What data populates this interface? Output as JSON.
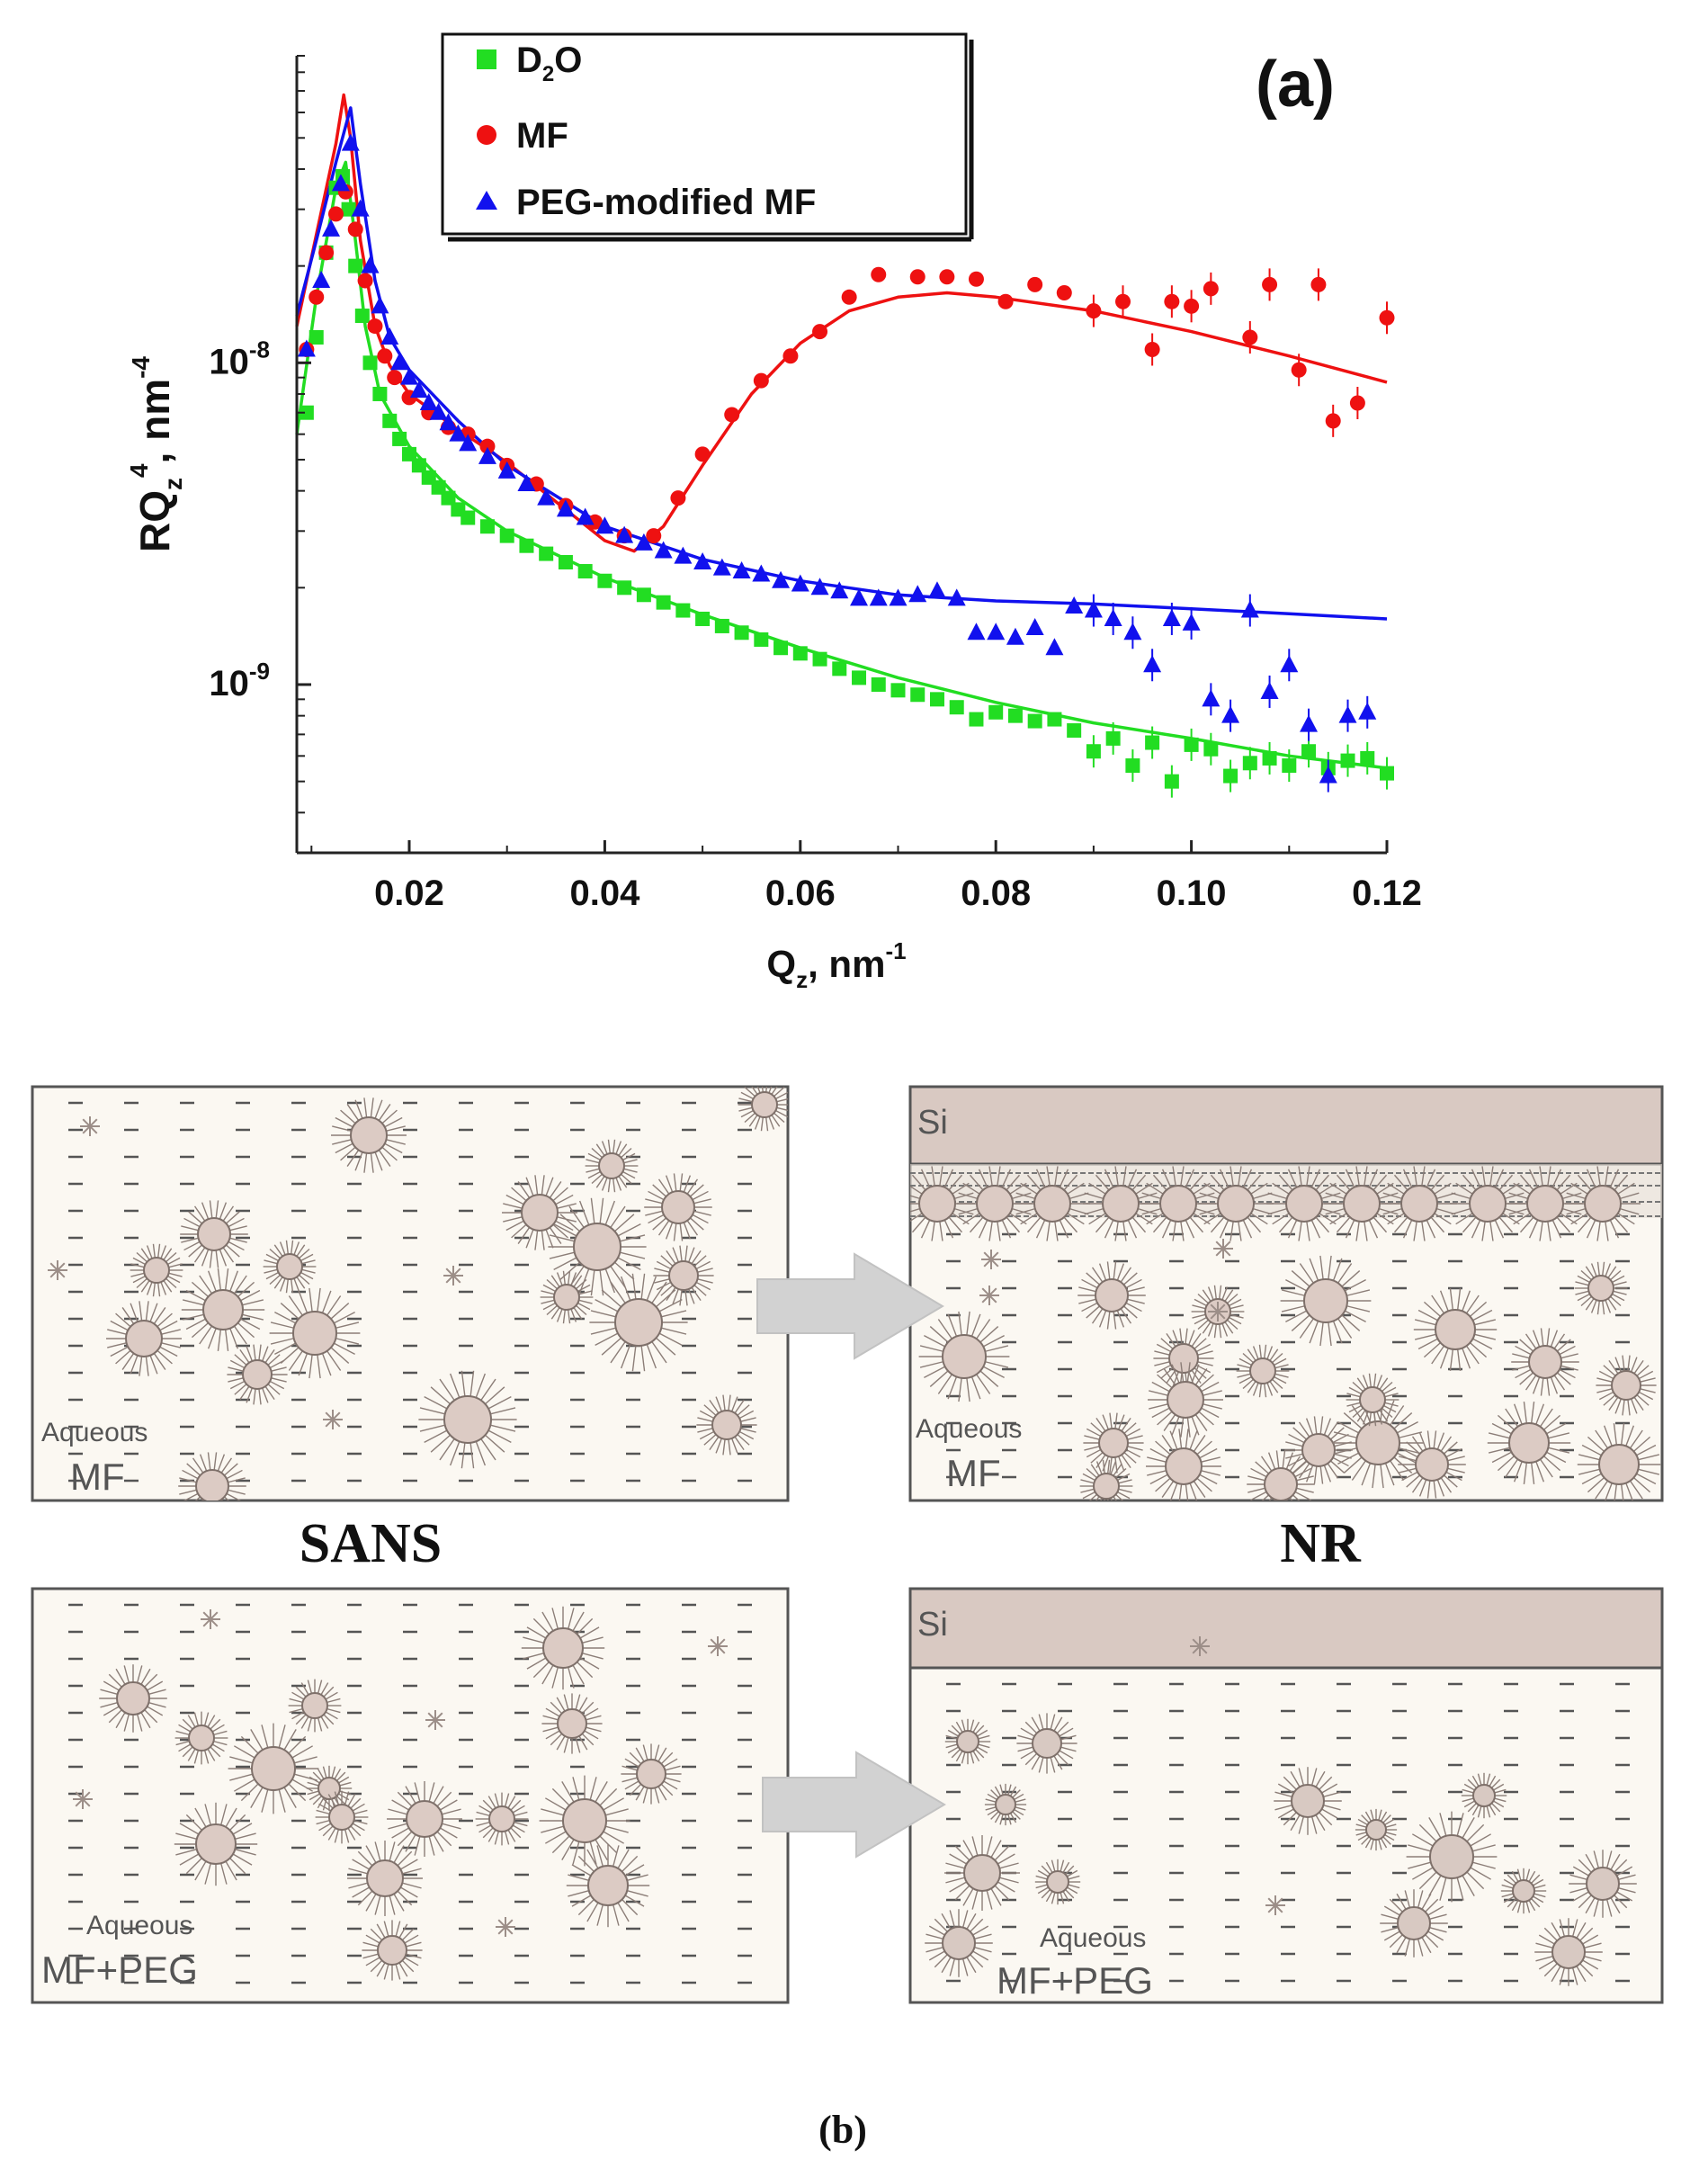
{
  "panel_a_label": "(a)",
  "panel_b_label": "(b)",
  "chart_data": {
    "type": "scatter",
    "title": "",
    "xlabel": "Q",
    "xlabel_sub": "z",
    "xlabel_unit": ", nm",
    "xlabel_sup": "-1",
    "ylabel": "RQ",
    "ylabel_sub": "z",
    "ylabel_sup": "4",
    "ylabel_unit": ", nm",
    "ylabel_unit_sup": "-4",
    "xlim": [
      0.0085,
      0.12
    ],
    "ylim": [
      3e-10,
      9e-08
    ],
    "yscale": "log",
    "x_ticks": [
      0.02,
      0.04,
      0.06,
      0.08,
      0.1,
      0.12
    ],
    "x_tick_labels": [
      "0.02",
      "0.04",
      "0.06",
      "0.08",
      "0.10",
      "0.12"
    ],
    "y_ticks": [
      1e-09,
      1e-08
    ],
    "y_tick_labels": [
      {
        "base": "10",
        "exp": "-9"
      },
      {
        "base": "10",
        "exp": "-8"
      }
    ],
    "legend": {
      "position": "top",
      "entries": [
        {
          "label": "D",
          "sub": "2",
          "rest": "O",
          "marker": "square",
          "color": "#22dd22"
        },
        {
          "label": "MF",
          "sub": "",
          "rest": "",
          "marker": "circle",
          "color": "#ee1111"
        },
        {
          "label": "PEG-modified MF",
          "sub": "",
          "rest": "",
          "marker": "triangle",
          "color": "#1111ee"
        }
      ]
    },
    "series": [
      {
        "name": "D2O",
        "marker": "square",
        "color": "#22dd22",
        "points": [
          [
            0.0095,
            7e-09
          ],
          [
            0.0105,
            1.2e-08
          ],
          [
            0.0115,
            2.2e-08
          ],
          [
            0.0125,
            3.5e-08
          ],
          [
            0.0132,
            3.8e-08
          ],
          [
            0.0138,
            3e-08
          ],
          [
            0.0145,
            2e-08
          ],
          [
            0.0152,
            1.4e-08
          ],
          [
            0.016,
            1e-08
          ],
          [
            0.017,
            8e-09
          ],
          [
            0.018,
            6.6e-09
          ],
          [
            0.019,
            5.8e-09
          ],
          [
            0.02,
            5.2e-09
          ],
          [
            0.021,
            4.8e-09
          ],
          [
            0.022,
            4.4e-09
          ],
          [
            0.023,
            4.1e-09
          ],
          [
            0.024,
            3.8e-09
          ],
          [
            0.025,
            3.5e-09
          ],
          [
            0.026,
            3.3e-09
          ],
          [
            0.028,
            3.1e-09
          ],
          [
            0.03,
            2.9e-09
          ],
          [
            0.032,
            2.7e-09
          ],
          [
            0.034,
            2.55e-09
          ],
          [
            0.036,
            2.4e-09
          ],
          [
            0.038,
            2.25e-09
          ],
          [
            0.04,
            2.1e-09
          ],
          [
            0.042,
            2e-09
          ],
          [
            0.044,
            1.9e-09
          ],
          [
            0.046,
            1.8e-09
          ],
          [
            0.048,
            1.7e-09
          ],
          [
            0.05,
            1.6e-09
          ],
          [
            0.052,
            1.52e-09
          ],
          [
            0.054,
            1.45e-09
          ],
          [
            0.056,
            1.38e-09
          ],
          [
            0.058,
            1.3e-09
          ],
          [
            0.06,
            1.25e-09
          ],
          [
            0.062,
            1.2e-09
          ],
          [
            0.064,
            1.12e-09
          ],
          [
            0.066,
            1.05e-09
          ],
          [
            0.068,
            1e-09
          ],
          [
            0.07,
            9.6e-10
          ],
          [
            0.072,
            9.3e-10
          ],
          [
            0.074,
            9e-10
          ],
          [
            0.076,
            8.5e-10
          ],
          [
            0.078,
            7.8e-10
          ],
          [
            0.08,
            8.2e-10
          ],
          [
            0.082,
            8e-10
          ],
          [
            0.084,
            7.7e-10
          ],
          [
            0.086,
            7.8e-10
          ],
          [
            0.088,
            7.2e-10
          ],
          [
            0.09,
            6.2e-10
          ],
          [
            0.092,
            6.8e-10
          ],
          [
            0.094,
            5.6e-10
          ],
          [
            0.096,
            6.6e-10
          ],
          [
            0.098,
            5e-10
          ],
          [
            0.1,
            6.5e-10
          ],
          [
            0.102,
            6.3e-10
          ],
          [
            0.104,
            5.2e-10
          ],
          [
            0.106,
            5.7e-10
          ],
          [
            0.108,
            5.9e-10
          ],
          [
            0.11,
            5.6e-10
          ],
          [
            0.112,
            6.2e-10
          ],
          [
            0.114,
            5.5e-10
          ],
          [
            0.116,
            5.8e-10
          ],
          [
            0.118,
            5.9e-10
          ],
          [
            0.12,
            5.3e-10
          ]
        ]
      },
      {
        "name": "MF",
        "marker": "circle",
        "color": "#ee1111",
        "points": [
          [
            0.0095,
            1.1e-08
          ],
          [
            0.0105,
            1.6e-08
          ],
          [
            0.0115,
            2.2e-08
          ],
          [
            0.0125,
            2.9e-08
          ],
          [
            0.0135,
            3.4e-08
          ],
          [
            0.0145,
            2.6e-08
          ],
          [
            0.0155,
            1.8e-08
          ],
          [
            0.0165,
            1.3e-08
          ],
          [
            0.0175,
            1.05e-08
          ],
          [
            0.0185,
            9e-09
          ],
          [
            0.02,
            7.8e-09
          ],
          [
            0.022,
            7e-09
          ],
          [
            0.024,
            6.3e-09
          ],
          [
            0.026,
            6e-09
          ],
          [
            0.028,
            5.5e-09
          ],
          [
            0.03,
            4.8e-09
          ],
          [
            0.033,
            4.2e-09
          ],
          [
            0.036,
            3.6e-09
          ],
          [
            0.039,
            3.2e-09
          ],
          [
            0.042,
            2.9e-09
          ],
          [
            0.045,
            2.9e-09
          ],
          [
            0.0475,
            3.8e-09
          ],
          [
            0.05,
            5.2e-09
          ],
          [
            0.053,
            6.9e-09
          ],
          [
            0.056,
            8.8e-09
          ],
          [
            0.059,
            1.05e-08
          ],
          [
            0.062,
            1.25e-08
          ],
          [
            0.065,
            1.6e-08
          ],
          [
            0.068,
            1.88e-08
          ],
          [
            0.072,
            1.85e-08
          ],
          [
            0.075,
            1.85e-08
          ],
          [
            0.078,
            1.82e-08
          ],
          [
            0.081,
            1.55e-08
          ],
          [
            0.084,
            1.75e-08
          ],
          [
            0.087,
            1.65e-08
          ],
          [
            0.09,
            1.45e-08
          ],
          [
            0.093,
            1.55e-08
          ],
          [
            0.096,
            1.1e-08
          ],
          [
            0.098,
            1.55e-08
          ],
          [
            0.1,
            1.5e-08
          ],
          [
            0.102,
            1.7e-08
          ],
          [
            0.106,
            1.2e-08
          ],
          [
            0.108,
            1.75e-08
          ],
          [
            0.111,
            9.5e-09
          ],
          [
            0.113,
            1.75e-08
          ],
          [
            0.1145,
            6.6e-09
          ],
          [
            0.117,
            7.5e-09
          ],
          [
            0.12,
            1.38e-08
          ]
        ]
      },
      {
        "name": "PEG-modified MF",
        "marker": "triangle",
        "color": "#1111ee",
        "points": [
          [
            0.0095,
            1.1e-08
          ],
          [
            0.011,
            1.8e-08
          ],
          [
            0.012,
            2.6e-08
          ],
          [
            0.013,
            3.6e-08
          ],
          [
            0.014,
            4.8e-08
          ],
          [
            0.015,
            3e-08
          ],
          [
            0.016,
            2e-08
          ],
          [
            0.017,
            1.5e-08
          ],
          [
            0.018,
            1.2e-08
          ],
          [
            0.019,
            1e-08
          ],
          [
            0.02,
            9e-09
          ],
          [
            0.021,
            8.2e-09
          ],
          [
            0.022,
            7.5e-09
          ],
          [
            0.023,
            7e-09
          ],
          [
            0.024,
            6.5e-09
          ],
          [
            0.025,
            6e-09
          ],
          [
            0.026,
            5.6e-09
          ],
          [
            0.028,
            5.1e-09
          ],
          [
            0.03,
            4.6e-09
          ],
          [
            0.032,
            4.2e-09
          ],
          [
            0.034,
            3.8e-09
          ],
          [
            0.036,
            3.5e-09
          ],
          [
            0.038,
            3.3e-09
          ],
          [
            0.04,
            3.1e-09
          ],
          [
            0.042,
            2.9e-09
          ],
          [
            0.044,
            2.75e-09
          ],
          [
            0.046,
            2.6e-09
          ],
          [
            0.048,
            2.5e-09
          ],
          [
            0.05,
            2.4e-09
          ],
          [
            0.052,
            2.3e-09
          ],
          [
            0.054,
            2.25e-09
          ],
          [
            0.056,
            2.2e-09
          ],
          [
            0.058,
            2.1e-09
          ],
          [
            0.06,
            2.05e-09
          ],
          [
            0.062,
            2e-09
          ],
          [
            0.064,
            1.95e-09
          ],
          [
            0.066,
            1.85e-09
          ],
          [
            0.068,
            1.85e-09
          ],
          [
            0.07,
            1.85e-09
          ],
          [
            0.072,
            1.9e-09
          ],
          [
            0.074,
            1.95e-09
          ],
          [
            0.076,
            1.85e-09
          ],
          [
            0.078,
            1.45e-09
          ],
          [
            0.08,
            1.45e-09
          ],
          [
            0.082,
            1.4e-09
          ],
          [
            0.084,
            1.5e-09
          ],
          [
            0.086,
            1.3e-09
          ],
          [
            0.088,
            1.75e-09
          ],
          [
            0.09,
            1.7e-09
          ],
          [
            0.092,
            1.6e-09
          ],
          [
            0.094,
            1.45e-09
          ],
          [
            0.096,
            1.15e-09
          ],
          [
            0.098,
            1.6e-09
          ],
          [
            0.1,
            1.55e-09
          ],
          [
            0.102,
            9e-10
          ],
          [
            0.104,
            8e-10
          ],
          [
            0.106,
            1.7e-09
          ],
          [
            0.108,
            9.5e-10
          ],
          [
            0.11,
            1.15e-09
          ],
          [
            0.112,
            7.5e-10
          ],
          [
            0.114,
            5.2e-10
          ],
          [
            0.116,
            8e-10
          ],
          [
            0.118,
            8.2e-10
          ]
        ]
      }
    ],
    "fits": [
      {
        "name": "D2O fit",
        "color": "#22dd22",
        "points": [
          [
            0.0085,
            6e-09
          ],
          [
            0.0105,
            1.6e-08
          ],
          [
            0.0125,
            3.5e-08
          ],
          [
            0.0135,
            4.2e-08
          ],
          [
            0.0145,
            2.4e-08
          ],
          [
            0.0155,
            1.3e-08
          ],
          [
            0.017,
            8e-09
          ],
          [
            0.02,
            5.5e-09
          ],
          [
            0.025,
            3.8e-09
          ],
          [
            0.03,
            3e-09
          ],
          [
            0.04,
            2.15e-09
          ],
          [
            0.05,
            1.65e-09
          ],
          [
            0.06,
            1.3e-09
          ],
          [
            0.07,
            1.05e-09
          ],
          [
            0.08,
            8.8e-10
          ],
          [
            0.09,
            7.6e-10
          ],
          [
            0.1,
            6.8e-10
          ],
          [
            0.11,
            6e-10
          ],
          [
            0.12,
            5.5e-10
          ]
        ]
      },
      {
        "name": "MF fit",
        "color": "#ee1111",
        "points": [
          [
            0.0085,
            1.3e-08
          ],
          [
            0.0105,
            2.5e-08
          ],
          [
            0.0125,
            4.8e-08
          ],
          [
            0.0133,
            6.8e-08
          ],
          [
            0.014,
            5e-08
          ],
          [
            0.015,
            2.4e-08
          ],
          [
            0.0165,
            1.3e-08
          ],
          [
            0.018,
            9.8e-09
          ],
          [
            0.02,
            8e-09
          ],
          [
            0.025,
            6.2e-09
          ],
          [
            0.03,
            4.9e-09
          ],
          [
            0.035,
            3.7e-09
          ],
          [
            0.04,
            2.8e-09
          ],
          [
            0.043,
            2.6e-09
          ],
          [
            0.046,
            3.1e-09
          ],
          [
            0.05,
            4.8e-09
          ],
          [
            0.055,
            8e-09
          ],
          [
            0.06,
            1.15e-08
          ],
          [
            0.065,
            1.45e-08
          ],
          [
            0.07,
            1.6e-08
          ],
          [
            0.075,
            1.65e-08
          ],
          [
            0.08,
            1.6e-08
          ],
          [
            0.09,
            1.45e-08
          ],
          [
            0.1,
            1.25e-08
          ],
          [
            0.11,
            1.05e-08
          ],
          [
            0.12,
            8.7e-09
          ]
        ]
      },
      {
        "name": "PEG-modified MF fit",
        "color": "#1111ee",
        "points": [
          [
            0.0085,
            1.4e-08
          ],
          [
            0.0105,
            2.4e-08
          ],
          [
            0.0125,
            4.2e-08
          ],
          [
            0.014,
            6.2e-08
          ],
          [
            0.015,
            3.6e-08
          ],
          [
            0.0165,
            1.8e-08
          ],
          [
            0.018,
            1.2e-08
          ],
          [
            0.02,
            9.5e-09
          ],
          [
            0.025,
            6.6e-09
          ],
          [
            0.03,
            4.8e-09
          ],
          [
            0.04,
            3.1e-09
          ],
          [
            0.05,
            2.45e-09
          ],
          [
            0.06,
            2.1e-09
          ],
          [
            0.07,
            1.9e-09
          ],
          [
            0.08,
            1.82e-09
          ],
          [
            0.09,
            1.78e-09
          ],
          [
            0.1,
            1.72e-09
          ],
          [
            0.11,
            1.66e-09
          ],
          [
            0.12,
            1.6e-09
          ]
        ]
      }
    ]
  },
  "scheme": {
    "sans_label": "SANS",
    "nr_label": "NR",
    "panels": [
      {
        "id": "sans-mf",
        "medium": "Aqueous",
        "sample": "MF",
        "substrate": ""
      },
      {
        "id": "nr-mf",
        "medium": "Aqueous",
        "sample": "MF",
        "substrate": "Si"
      },
      {
        "id": "sans-mfpeg",
        "medium": "Aqueous",
        "sample": "MF+PEG",
        "substrate": ""
      },
      {
        "id": "nr-mfpeg",
        "medium": "Aqueous",
        "sample": "MF+PEG",
        "substrate": "Si"
      }
    ]
  }
}
